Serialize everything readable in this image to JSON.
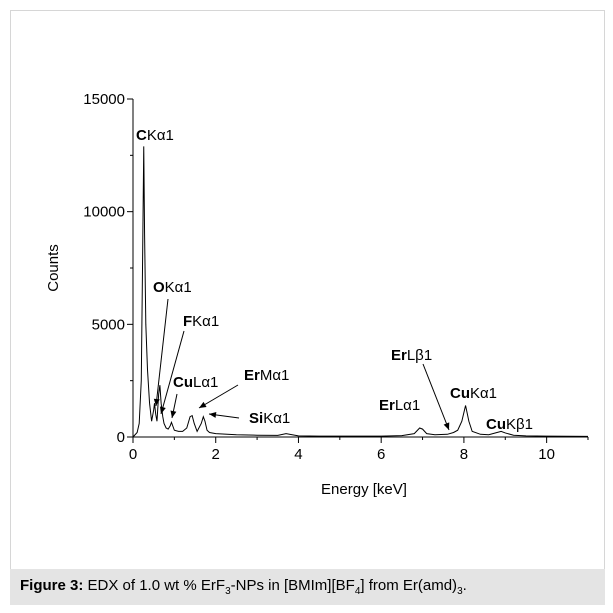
{
  "chart_data": {
    "type": "line",
    "xlabel": "Energy [keV]",
    "ylabel": "Counts",
    "xlim": [
      0,
      11
    ],
    "ylim": [
      0,
      15000
    ],
    "x_ticks": [
      "0",
      "2",
      "4",
      "6",
      "8",
      "10"
    ],
    "y_ticks": [
      "0",
      "5000",
      "10000",
      "15000"
    ],
    "grid": false,
    "legend": "none",
    "series_color": "#000000",
    "series": [
      {
        "x": [
          0.0,
          0.1,
          0.15,
          0.2,
          0.23,
          0.26,
          0.28,
          0.31,
          0.35,
          0.4,
          0.45,
          0.5,
          0.52,
          0.55,
          0.58,
          0.62,
          0.65,
          0.68,
          0.72,
          0.75,
          0.8,
          0.85,
          0.9,
          0.93,
          0.97,
          1.0,
          1.1,
          1.2,
          1.3,
          1.38,
          1.43,
          1.48,
          1.55,
          1.65,
          1.7,
          1.74,
          1.79,
          1.85,
          2.0,
          2.5,
          3.0,
          3.5,
          3.7,
          4.0,
          4.5,
          5.0,
          5.5,
          6.0,
          6.5,
          6.8,
          6.93,
          7.0,
          7.1,
          7.3,
          7.6,
          7.75,
          7.85,
          7.9,
          7.95,
          8.04,
          8.12,
          8.2,
          8.4,
          8.6,
          8.8,
          8.9,
          9.0,
          9.2,
          9.5,
          10.0,
          11.0
        ],
        "y": [
          0,
          200,
          600,
          2500,
          7500,
          12900,
          9000,
          5000,
          3000,
          1500,
          700,
          1200,
          1500,
          1000,
          700,
          1900,
          2300,
          1500,
          900,
          600,
          400,
          350,
          500,
          650,
          450,
          300,
          250,
          250,
          400,
          900,
          950,
          600,
          250,
          600,
          900,
          700,
          300,
          200,
          150,
          100,
          80,
          70,
          150,
          50,
          40,
          40,
          40,
          40,
          60,
          150,
          400,
          350,
          150,
          100,
          120,
          200,
          300,
          500,
          700,
          1400,
          700,
          250,
          120,
          100,
          200,
          250,
          180,
          80,
          50,
          40,
          30
        ]
      }
    ],
    "annotations": [
      {
        "element": "C",
        "line": "Kα1"
      },
      {
        "element": "O",
        "line": "Kα1"
      },
      {
        "element": "F",
        "line": "Kα1"
      },
      {
        "element": "Cu",
        "line": "Lα1"
      },
      {
        "element": "Er",
        "line": "Mα1"
      },
      {
        "element": "Si",
        "line": "Kα1"
      },
      {
        "element": "Er",
        "line": "Lβ1"
      },
      {
        "element": "Er",
        "line": "Lα1"
      },
      {
        "element": "Cu",
        "line": "Kα1"
      },
      {
        "element": "Cu",
        "line": "Kβ1"
      }
    ]
  },
  "caption": {
    "label": "Figure 3:",
    "text_1": " EDX of 1.0 wt % ErF",
    "sub_1": "3",
    "text_2": "-NPs in [BMIm][BF",
    "sub_2": "4",
    "text_3": "] from Er(amd)",
    "sub_3": "3",
    "text_4": "."
  }
}
